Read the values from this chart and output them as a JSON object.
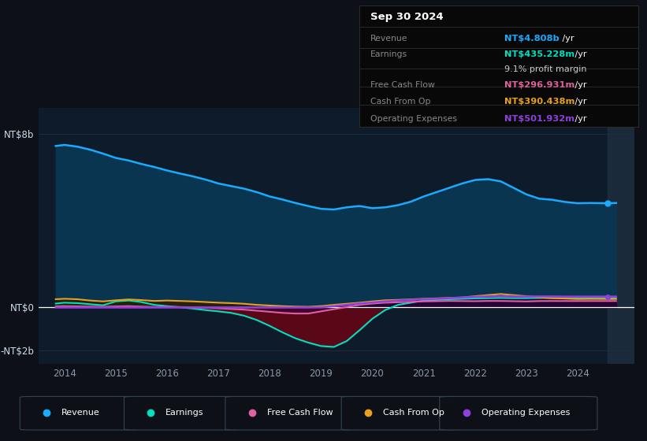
{
  "bg_color": "#0d1117",
  "chart_bg": "#0d1b2a",
  "grid_color": "#253545",
  "zero_line_color": "#ffffff",
  "years": [
    2013.83,
    2014.0,
    2014.25,
    2014.5,
    2014.75,
    2015.0,
    2015.25,
    2015.5,
    2015.75,
    2016.0,
    2016.25,
    2016.5,
    2016.75,
    2017.0,
    2017.25,
    2017.5,
    2017.75,
    2018.0,
    2018.25,
    2018.5,
    2018.75,
    2019.0,
    2019.25,
    2019.5,
    2019.75,
    2020.0,
    2020.25,
    2020.5,
    2020.75,
    2021.0,
    2021.25,
    2021.5,
    2021.75,
    2022.0,
    2022.25,
    2022.5,
    2022.75,
    2023.0,
    2023.25,
    2023.5,
    2023.75,
    2024.0,
    2024.25,
    2024.58,
    2024.75
  ],
  "revenue": [
    7450000000.0,
    7500000000.0,
    7420000000.0,
    7280000000.0,
    7100000000.0,
    6900000000.0,
    6780000000.0,
    6620000000.0,
    6480000000.0,
    6320000000.0,
    6180000000.0,
    6050000000.0,
    5900000000.0,
    5720000000.0,
    5600000000.0,
    5480000000.0,
    5320000000.0,
    5120000000.0,
    4980000000.0,
    4820000000.0,
    4680000000.0,
    4550000000.0,
    4520000000.0,
    4620000000.0,
    4680000000.0,
    4580000000.0,
    4620000000.0,
    4720000000.0,
    4880000000.0,
    5120000000.0,
    5320000000.0,
    5520000000.0,
    5720000000.0,
    5880000000.0,
    5920000000.0,
    5820000000.0,
    5520000000.0,
    5220000000.0,
    5020000000.0,
    4970000000.0,
    4870000000.0,
    4808000000.0,
    4820000000.0,
    4808000000.0,
    4820000000.0
  ],
  "earnings": [
    180000000.0,
    220000000.0,
    200000000.0,
    150000000.0,
    100000000.0,
    280000000.0,
    320000000.0,
    250000000.0,
    120000000.0,
    60000000.0,
    10000000.0,
    -50000000.0,
    -120000000.0,
    -180000000.0,
    -250000000.0,
    -380000000.0,
    -580000000.0,
    -850000000.0,
    -1150000000.0,
    -1420000000.0,
    -1620000000.0,
    -1780000000.0,
    -1820000000.0,
    -1550000000.0,
    -1050000000.0,
    -520000000.0,
    -120000000.0,
    120000000.0,
    220000000.0,
    320000000.0,
    350000000.0,
    380000000.0,
    400000000.0,
    420000000.0,
    430000000.0,
    440000000.0,
    430000000.0,
    430000000.0,
    440000000.0,
    435000000.0,
    435000000.0,
    435000000.0,
    435000000.0,
    435000000.0,
    435000000.0
  ],
  "free_cash_flow": [
    50000000.0,
    60000000.0,
    50000000.0,
    40000000.0,
    30000000.0,
    50000000.0,
    60000000.0,
    40000000.0,
    20000000.0,
    30000000.0,
    20000000.0,
    10000000.0,
    -10000000.0,
    -40000000.0,
    -70000000.0,
    -100000000.0,
    -150000000.0,
    -200000000.0,
    -250000000.0,
    -280000000.0,
    -280000000.0,
    -180000000.0,
    -80000000.0,
    20000000.0,
    120000000.0,
    180000000.0,
    220000000.0,
    240000000.0,
    260000000.0,
    280000000.0,
    290000000.0,
    300000000.0,
    295000000.0,
    290000000.0,
    300000000.0,
    300000000.0,
    290000000.0,
    280000000.0,
    295000000.0,
    298000000.0,
    297000000.0,
    297000000.0,
    297000000.0,
    297000000.0,
    297000000.0
  ],
  "cash_from_op": [
    380000000.0,
    400000000.0,
    380000000.0,
    320000000.0,
    280000000.0,
    330000000.0,
    370000000.0,
    340000000.0,
    300000000.0,
    320000000.0,
    300000000.0,
    280000000.0,
    250000000.0,
    220000000.0,
    200000000.0,
    170000000.0,
    120000000.0,
    90000000.0,
    60000000.0,
    40000000.0,
    30000000.0,
    60000000.0,
    120000000.0,
    170000000.0,
    220000000.0,
    280000000.0,
    330000000.0,
    350000000.0,
    370000000.0,
    400000000.0,
    420000000.0,
    440000000.0,
    460000000.0,
    520000000.0,
    570000000.0,
    620000000.0,
    570000000.0,
    520000000.0,
    470000000.0,
    430000000.0,
    410000000.0,
    390000000.0,
    395000000.0,
    390000000.0,
    390000000.0
  ],
  "operating_expenses": [
    0.0,
    0.0,
    0.0,
    0.0,
    0.0,
    0.0,
    0.0,
    0.0,
    0.0,
    0.0,
    0.0,
    0.0,
    0.0,
    0.0,
    0.0,
    0.0,
    0.0,
    0.0,
    0.0,
    0.0,
    0.0,
    10000000.0,
    60000000.0,
    120000000.0,
    180000000.0,
    230000000.0,
    280000000.0,
    320000000.0,
    350000000.0,
    380000000.0,
    400000000.0,
    430000000.0,
    460000000.0,
    490000000.0,
    510000000.0,
    530000000.0,
    510000000.0,
    500000000.0,
    510000000.0,
    510000000.0,
    502000000.0,
    502000000.0,
    502000000.0,
    502000000.0,
    502000000.0
  ],
  "revenue_color": "#1aabff",
  "revenue_fill": "#0a3550",
  "earnings_color": "#00e0c0",
  "earnings_fill_pos": "#004840",
  "earnings_fill_neg": "#5a0818",
  "fcf_color": "#e060a0",
  "fcf_fill": "#400030",
  "cashop_color": "#e8a020",
  "cashop_fill": "#2a1e00",
  "opex_color": "#9040e0",
  "opex_fill": "#200040",
  "revenue_label_color": "#1aabff",
  "earnings_label_color": "#00e0c0",
  "fcf_label_color": "#e060a0",
  "cashop_label_color": "#e8a020",
  "opex_label_color": "#9040e0",
  "info_title": "Sep 30 2024",
  "info_revenue": "NT$4.808b /yr",
  "info_earnings": "NT$435.228m /yr",
  "info_margin": "9.1% profit margin",
  "info_fcf": "NT$296.931m /yr",
  "info_cashop": "NT$390.438m /yr",
  "info_opex": "NT$501.932m /yr",
  "ylim_min": -2600000000.0,
  "ylim_max": 9200000000.0,
  "xlim_min": 2013.5,
  "xlim_max": 2025.1,
  "xtick_pos": [
    2014,
    2015,
    2016,
    2017,
    2018,
    2019,
    2020,
    2021,
    2022,
    2023,
    2024
  ],
  "ytick_vals": [
    8000000000.0,
    0,
    -2000000000.0
  ],
  "ytick_labels": [
    "NT$8b",
    "NT$0",
    "-NT$2b"
  ],
  "gray_shade_start": 2024.58,
  "gray_shade_end": 2025.1
}
